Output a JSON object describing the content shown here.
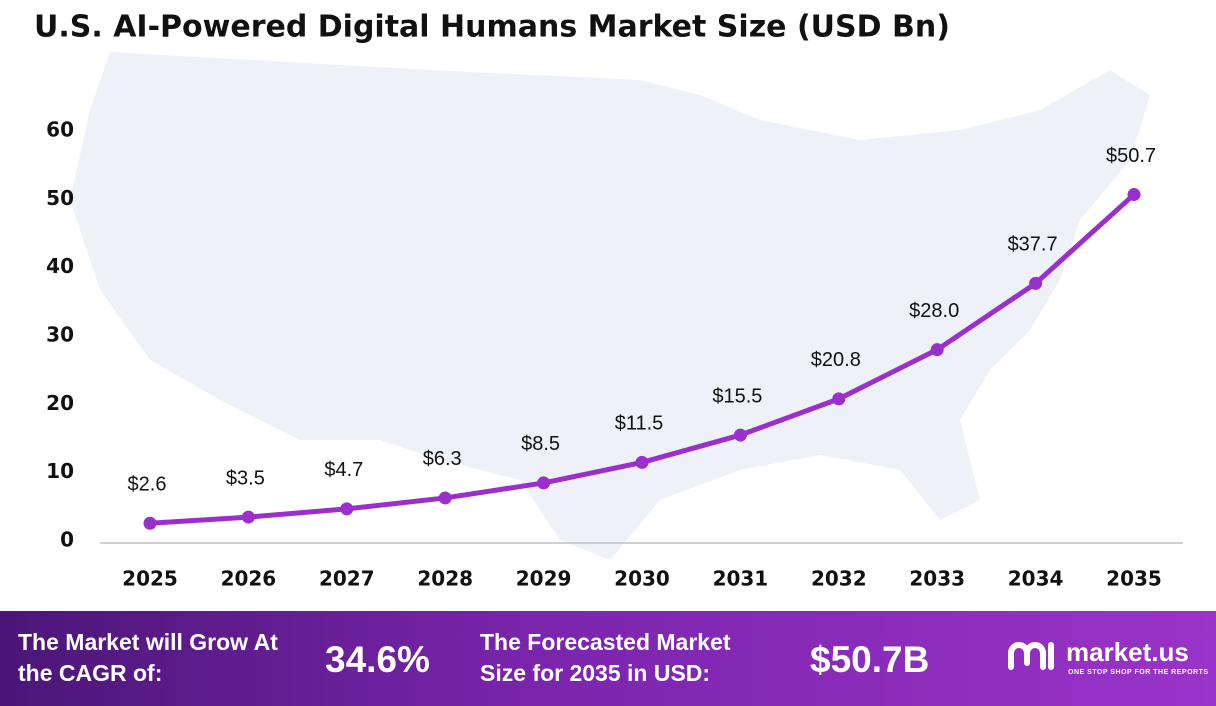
{
  "chart_data": {
    "type": "line",
    "title": "U.S. AI-Powered Digital Humans Market Size (USD Bn)",
    "categories": [
      "2025",
      "2026",
      "2027",
      "2028",
      "2029",
      "2030",
      "2031",
      "2032",
      "2033",
      "2034",
      "2035"
    ],
    "values": [
      2.6,
      3.5,
      4.7,
      6.3,
      8.5,
      11.5,
      15.5,
      20.8,
      28.0,
      37.7,
      50.7
    ],
    "value_labels": [
      "$2.6",
      "$3.5",
      "$4.7",
      "$6.3",
      "$8.5",
      "$11.5",
      "$15.5",
      "$20.8",
      "$28.0",
      "$37.7",
      "$50.7"
    ],
    "color": "#9b2fcc",
    "ylim": [
      0,
      60
    ],
    "yticks": [
      0,
      10,
      20,
      30,
      40,
      50,
      60
    ],
    "grid": false
  },
  "footer": {
    "cagr_caption": "The Market will Grow At the CAGR of:",
    "cagr_value": "34.6%",
    "forecast_caption": "The Forecasted Market Size for 2035 in USD:",
    "forecast_value": "$50.7B",
    "brand": "market.us",
    "tagline": "ONE STOP SHOP FOR THE REPORTS"
  }
}
